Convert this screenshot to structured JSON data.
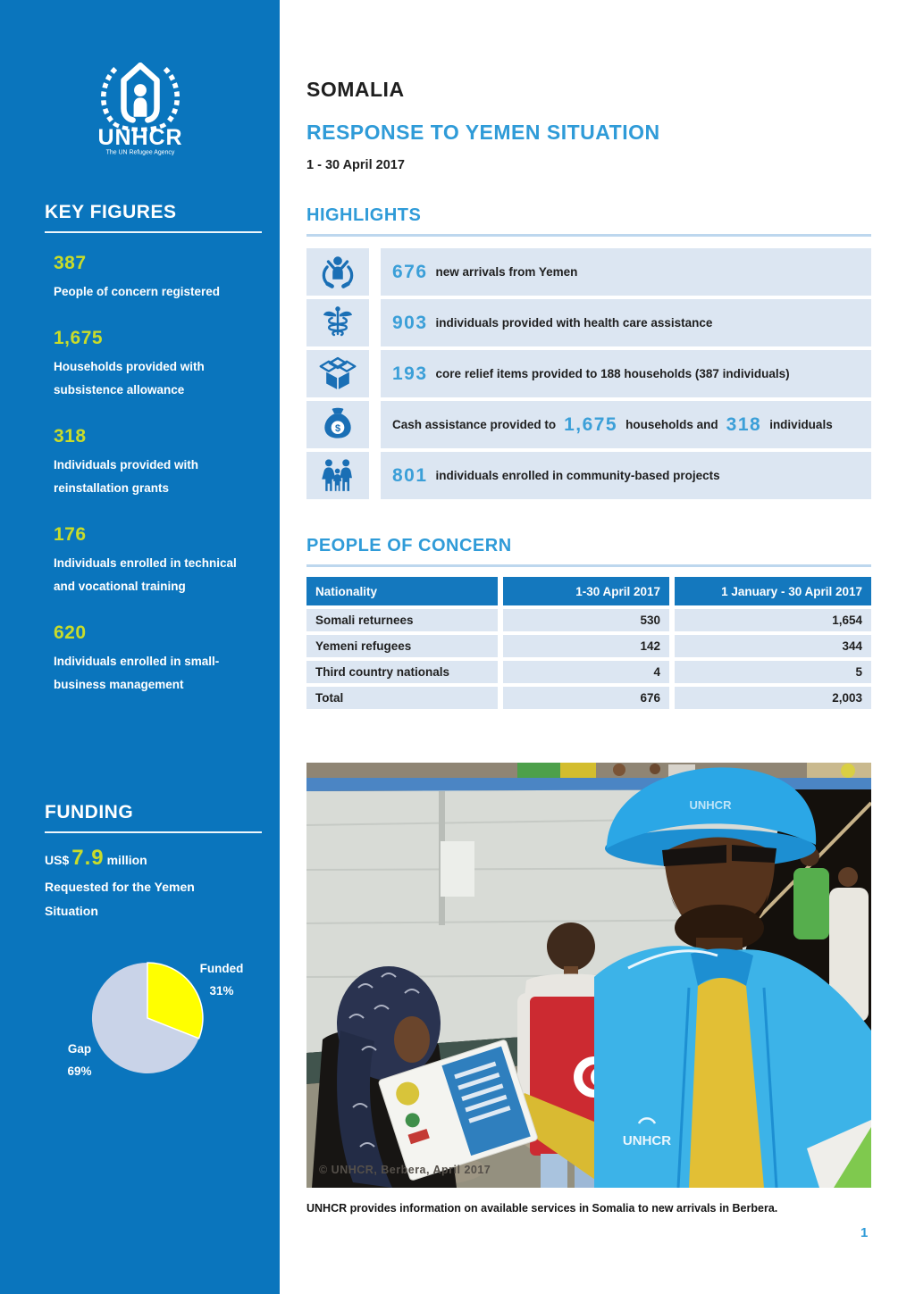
{
  "colors": {
    "unhcr_blue": "#0a75bd",
    "accent_blue": "#2f9bd8",
    "number_blue": "#3b9fd8",
    "light_bar": "#dce6f2",
    "table_header_blue": "#1478be",
    "key_figure_yellow": "#c9dc2a",
    "pie_funded": "#ffff00",
    "pie_gap": "#c9d3e8"
  },
  "chart_data": {
    "type": "pie",
    "title": "Funding",
    "slices": [
      {
        "label": "Funded",
        "value": 31,
        "percent_label": "31%",
        "color": "#ffff00"
      },
      {
        "label": "Gap",
        "value": 69,
        "percent_label": "69%",
        "color": "#c9d3e8"
      }
    ],
    "legend_position": "labels-adjacent",
    "start_angle": "12-o'clock, clockwise"
  },
  "sidebar": {
    "logo": {
      "name": "UNHCR",
      "tagline": "The UN Refugee Agency"
    },
    "key_figures": {
      "title": "KEY FIGURES",
      "items": [
        {
          "value": "387",
          "label": "People of concern registered"
        },
        {
          "value": "1,675",
          "label": "Households provided with subsistence allowance"
        },
        {
          "value": "318",
          "label": "Individuals provided with reinstallation grants"
        },
        {
          "value": "176",
          "label": "Individuals enrolled in technical and vocational training"
        },
        {
          "value": "620",
          "label": "Individuals enrolled in small-business management"
        }
      ]
    },
    "funding": {
      "title": "FUNDING",
      "amount_prefix": "US$",
      "amount": "7.9",
      "amount_suffix": "million",
      "description": "Requested for the Yemen Situation"
    }
  },
  "header": {
    "country": "SOMALIA",
    "title": "RESPONSE TO YEMEN SITUATION",
    "period": "1 - 30 April 2017"
  },
  "highlights": {
    "title": "HIGHLIGHTS",
    "items": [
      {
        "icon": "hands-person-icon",
        "value": "676",
        "text": "new arrivals from Yemen"
      },
      {
        "icon": "caduceus-icon",
        "value": "903",
        "text": "individuals provided with health care assistance"
      },
      {
        "icon": "open-box-icon",
        "value": "193",
        "text": "core relief items provided to 188 households (387 individuals)"
      },
      {
        "icon": "money-bag-icon",
        "text_pre": "Cash assistance provided to",
        "value1": "1,675",
        "text_mid": "households and",
        "value2": "318",
        "text_post": "individuals"
      },
      {
        "icon": "family-icon",
        "value": "801",
        "text": "individuals enrolled in community-based projects"
      }
    ]
  },
  "people_of_concern": {
    "title": "PEOPLE OF CONCERN",
    "table": {
      "columns": [
        "Nationality",
        "1-30 April 2017",
        "1 January - 30 April 2017"
      ],
      "rows": [
        [
          "Somali returnees",
          "530",
          "1,654"
        ],
        [
          "Yemeni refugees",
          "142",
          "344"
        ],
        [
          "Third country nationals",
          "4",
          "5"
        ],
        [
          "Total",
          "676",
          "2,003"
        ]
      ]
    }
  },
  "photo": {
    "credit": "© UNHCR, Berbera, April 2017",
    "caption": "UNHCR provides information on available services in Somalia to new arrivals in Berbera."
  },
  "page": {
    "number": "1"
  }
}
